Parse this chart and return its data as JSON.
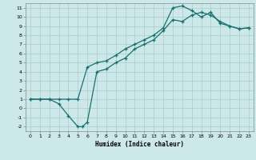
{
  "title": "",
  "xlabel": "Humidex (Indice chaleur)",
  "xlim": [
    -0.5,
    23.5
  ],
  "ylim": [
    -2.5,
    11.5
  ],
  "xticks": [
    0,
    1,
    2,
    3,
    4,
    5,
    6,
    7,
    8,
    9,
    10,
    11,
    12,
    13,
    14,
    15,
    16,
    17,
    18,
    19,
    20,
    21,
    22,
    23
  ],
  "yticks": [
    -2,
    -1,
    0,
    1,
    2,
    3,
    4,
    5,
    6,
    7,
    8,
    9,
    10,
    11
  ],
  "bg_color": "#cce8e8",
  "grid_color": "#aacccc",
  "line_color": "#1a7070",
  "curve1_x": [
    0,
    1,
    2,
    3,
    4,
    5,
    5.5,
    6,
    7,
    8,
    9,
    10,
    11,
    12,
    13,
    14,
    15,
    16,
    17,
    18,
    19,
    20,
    21,
    22,
    23
  ],
  "curve1_y": [
    1,
    1,
    1,
    0.5,
    -0.8,
    -2,
    -2,
    -1.5,
    4,
    4.3,
    5,
    5.5,
    6.5,
    7,
    7.5,
    8.5,
    9.7,
    9.5,
    10.2,
    10.5,
    10.2,
    9.5,
    9,
    8.7,
    8.8
  ],
  "curve2_x": [
    0,
    1,
    2,
    3,
    4,
    5,
    6,
    7,
    8,
    9,
    10,
    11,
    12,
    13,
    14,
    15,
    16,
    17,
    18,
    19,
    20,
    21,
    22,
    23
  ],
  "curve2_y": [
    1,
    1,
    1,
    1,
    1,
    1,
    4.5,
    5,
    5.2,
    5.8,
    6.5,
    7,
    7.5,
    8,
    8.8,
    11,
    11.2,
    10.7,
    10,
    10.5,
    9.3,
    9.0,
    8.7,
    8.8
  ]
}
